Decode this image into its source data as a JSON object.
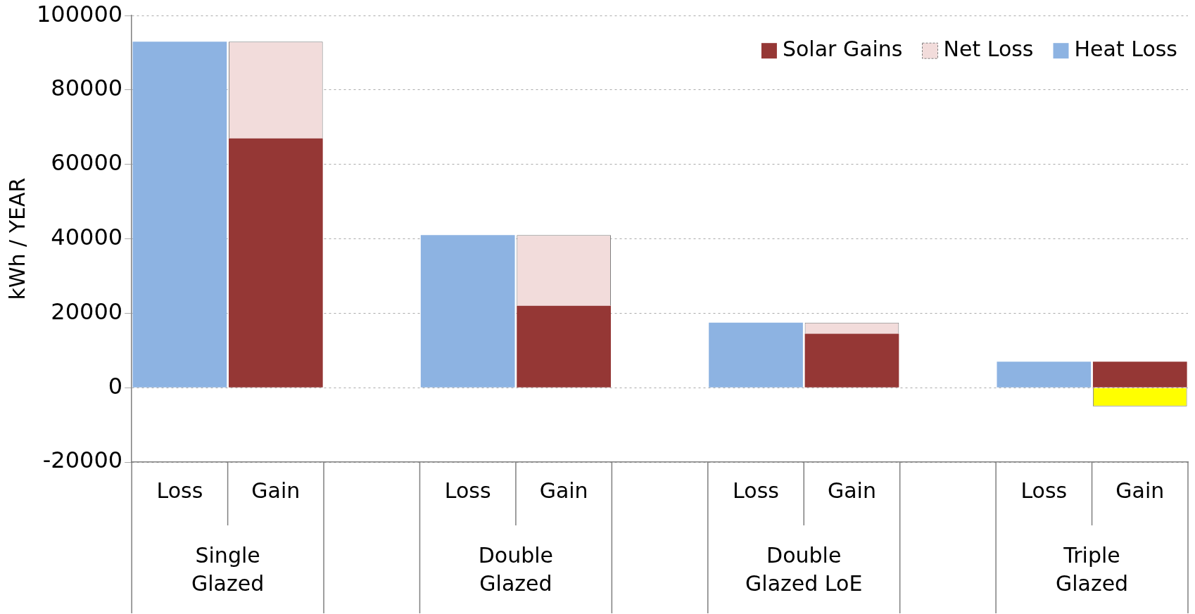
{
  "chart_data": {
    "type": "bar",
    "ylabel": "kWh / YEAR",
    "categories": [
      "Loss",
      "Gain",
      null,
      "Loss",
      "Gain",
      null,
      "Loss",
      "Gain",
      null,
      "Loss",
      "Gain"
    ],
    "series": [
      {
        "name": "Solar Gains",
        "color": "#953735",
        "values": [
          null,
          67000,
          null,
          null,
          22000,
          null,
          null,
          14500,
          null,
          null,
          7000
        ]
      },
      {
        "name": "Net Loss",
        "color": "#f2dcdb",
        "colors": [
          null,
          "#f2dcdb",
          null,
          null,
          "#f2dcdb",
          null,
          null,
          "#f2dcdb",
          null,
          null,
          "#ffff00"
        ],
        "values": [
          null,
          26000,
          null,
          null,
          19000,
          null,
          null,
          3000,
          null,
          null,
          -5000
        ]
      },
      {
        "name": "Heat Loss",
        "color": "#8db3e2",
        "values": [
          93000,
          null,
          null,
          41000,
          null,
          null,
          17500,
          null,
          null,
          7000,
          null
        ]
      }
    ],
    "stacked": true,
    "annotations": [
      "Single Glazed",
      "Double Glazed",
      "Double Glazed LoE",
      "Triple Glazed"
    ],
    "ylim": [
      -20000,
      100000
    ],
    "yticks": [
      -20000,
      0,
      20000,
      40000,
      60000,
      80000,
      100000
    ],
    "grid": "y",
    "legend": "top right"
  }
}
